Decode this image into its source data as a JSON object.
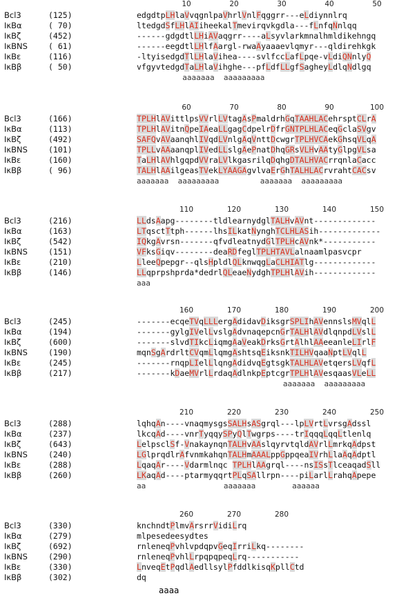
{
  "blocks": [
    {
      "ruler": [
        "10",
        "20",
        "30",
        "40",
        "50"
      ],
      "rows": [
        {
          "name": "Bcl3",
          "pos": "(125)",
          "seq": "edgdtpLHlaVvqgnlpaVhrlVnlFqggrr---eLdiynnlrq"
        },
        {
          "name": "IκBα",
          "pos": "( 70)",
          "seq": "ltedgdSfLHlAIiheekalTmevirqvkgdla---fLnfqNnlqq"
        },
        {
          "name": "IκBζ",
          "pos": "(452)",
          "seq": "------gdgdtlLHiAVaqgrr----aLsyvlarkmnalhmldikehngq"
        },
        {
          "name": "IκBNS",
          "pos": "( 61)",
          "seq": "------eegdtlLHlfAargl-rwaAyaaaevlqmyr---qldirehkgk"
        },
        {
          "name": "IκBε",
          "pos": "(116)",
          "seq": "-ltyisedgdTlLHlaVihea----svlfccLafLpqe-vLdiQNnlyQ"
        },
        {
          "name": "IκBβ",
          "pos": "( 50)",
          "seq": "vfgyvtedgdTaLHlaVihghe---pfLdfLLgfSagheyLdlqNdlgq"
        }
      ],
      "anno": "          aaaaaaa  aaaaaaaaa"
    },
    {
      "ruler": [
        "60",
        "70",
        "80",
        "90",
        "100"
      ],
      "rows": [
        {
          "name": "Bcl3",
          "pos": "(166)",
          "seq": "TPLHlAVittlpsVVrlLVtagAsPmaldrhGqTAAHLACehrsptCLrA"
        },
        {
          "name": "IκBα",
          "pos": "(113)",
          "seq": "TPLHlAVitnQpeIAeaLLgagCdpelrDfrGNTPLHLACeqGclaSVgv"
        },
        {
          "name": "IκBζ",
          "pos": "(492)",
          "seq": "SAFQvAVaanqhlIVqdLVnlgAqVnttDcwgrTPLHVCAekGhsqVLqA"
        },
        {
          "name": "IκBNS",
          "pos": "(101)",
          "seq": "TPLLvAAaanqplIVedLLslgAePnatDhqGRsVLHvAAtyGlpgVLsa"
        },
        {
          "name": "IκBε",
          "pos": "(160)",
          "seq": "TaLHlAVhlgqpdVVraLVlkgasrilqDqhgDTALHVACrrqnlaCacc"
        },
        {
          "name": "IκBβ",
          "pos": "( 96)",
          "seq": "TALHlAAilgeasTVekLYAAGAgvlvaErGhTALHLACrvrahtCACsv"
        }
      ],
      "anno": "aaaaaaa  aaaaaaaaa         aaaaaaa  aaaaaaaaa"
    },
    {
      "ruler": [
        "110",
        "120",
        "130",
        "140",
        "150"
      ],
      "rows": [
        {
          "name": "Bcl3",
          "pos": "(216)",
          "seq": "LLdsAapg--------tldlearnydglTALHvAVnt-------------"
        },
        {
          "name": "IκBα",
          "pos": "(163)",
          "seq": "LTqsctTtph------lhsILkatNynghTCLHLASih-------------"
        },
        {
          "name": "IκBζ",
          "pos": "(542)",
          "seq": "IQkgAvrsn-------qfvdleatnydGlTPLHcAVnk*-----------"
        },
        {
          "name": "IκBNS",
          "pos": "(151)",
          "seq": "VFksGiqv--------deaRDfeglTPLHTAVLalnaamlpasvcpr"
        },
        {
          "name": "IκBε",
          "pos": "(210)",
          "seq": "LleeQpepgr--qlsHpldlQLknwqgLaCLHIATlg-------------"
        },
        {
          "name": "IκBβ",
          "pos": "(146)",
          "seq": "LLqprpshprda*dedrlQLeaeNydghTPLHlAVih-------------"
        }
      ],
      "anno": "aaa"
    },
    {
      "ruler": [
        "160",
        "170",
        "180",
        "190",
        "200"
      ],
      "rows": [
        {
          "name": "Bcl3",
          "pos": "(245)",
          "seq": "-------ecqeTVqLLLergAdidavDiksgrSPLIhAVennslsMVqlL"
        },
        {
          "name": "IκBα",
          "pos": "(194)",
          "seq": "-------gylgIVelLvslgAdvnaqepcnGrTALHlAVdlqnpdLVslL"
        },
        {
          "name": "IκBζ",
          "pos": "(600)",
          "seq": "-------slvdTIkcLiqmgAaVeakDrksGrtAlhlAAeeanleLIrlF"
        },
        {
          "name": "IκBNS",
          "pos": "(190)",
          "seq": "mqnSgArdrltCVqmLlqmgAshtsqEiksnkTILHVqaaNptLVqlL"
        },
        {
          "name": "IκBε",
          "pos": "(245)",
          "seq": "-------rnqpLIelLlqngAdidvqEgtsgkTALHLAVetqersLVqfL"
        },
        {
          "name": "IκBβ",
          "pos": "(217)",
          "seq": "-------kDaeMVrlLrdaqAdlnkpEptcgrTPLHlAVesqaasVLeLL"
        }
      ],
      "anno": "                                aaaaaaa  aaaaaaaaa"
    },
    {
      "ruler": [
        "210",
        "220",
        "230",
        "240",
        "250"
      ],
      "rows": [
        {
          "name": "Bcl3",
          "pos": "(288)",
          "seq": "lqhqAn----vnaqmysgsSALHsASgrql---lpLVrtLvrsgAdssl"
        },
        {
          "name": "IκBα",
          "pos": "(237)",
          "seq": "lkcqAd----vnrTyqqySPyQlTwgrps----trIqqqLqqLtlenlq"
        },
        {
          "name": "IκBζ",
          "pos": "(643)",
          "seq": "LelpsclSf-VnakaynqnTALHvAAslqyrvtqldAVrlLmrkqAdpst"
        },
        {
          "name": "IκBNS",
          "pos": "(240)",
          "seq": "LGlprqdlrAfvnmkahqnTALHmAAALppGppqeaIVrhLlaAqAdptl"
        },
        {
          "name": "IκBε",
          "pos": "(288)",
          "seq": "LqaqAr----Vdarmlnqc TPLHlAAgrql----nsISsTlceaqadSll"
        },
        {
          "name": "IκBβ",
          "pos": "(260)",
          "seq": "LKaqAd----ptarmyqqrtPLqSAllrpn----piLarlLrahqApepe"
        }
      ],
      "anno": "aa                 aaaaaaa        aaaaaa"
    },
    {
      "ruler": [
        "260",
        "270",
        "280"
      ],
      "rows": [
        {
          "name": "Bcl3",
          "pos": "(330)",
          "seq": "knchndtPlmvArsrrVidiLrq"
        },
        {
          "name": "IκBα",
          "pos": "(279)",
          "seq": "mlpesedeesydtes"
        },
        {
          "name": "IκBζ",
          "pos": "(692)",
          "seq": "rnleneqPvhlvpdqpvGeqIrriLkq--------"
        },
        {
          "name": "IκBNS",
          "pos": "(290)",
          "seq": "rnleneqPvhlLrpqpqpeqLrq-----------"
        },
        {
          "name": "IκBε",
          "pos": "(330)",
          "seq": "LnveqEtPqdlAedllsylPfddlkisqKpllCtd"
        },
        {
          "name": "IκBβ",
          "pos": "(302)",
          "seq": "dq"
        }
      ],
      "anno": ""
    }
  ],
  "bottom_anno": "aaaa",
  "colors": {
    "highlight_bg": "#d9d9d9",
    "highlight_text": "#d8301e",
    "default_text": "#111111"
  }
}
